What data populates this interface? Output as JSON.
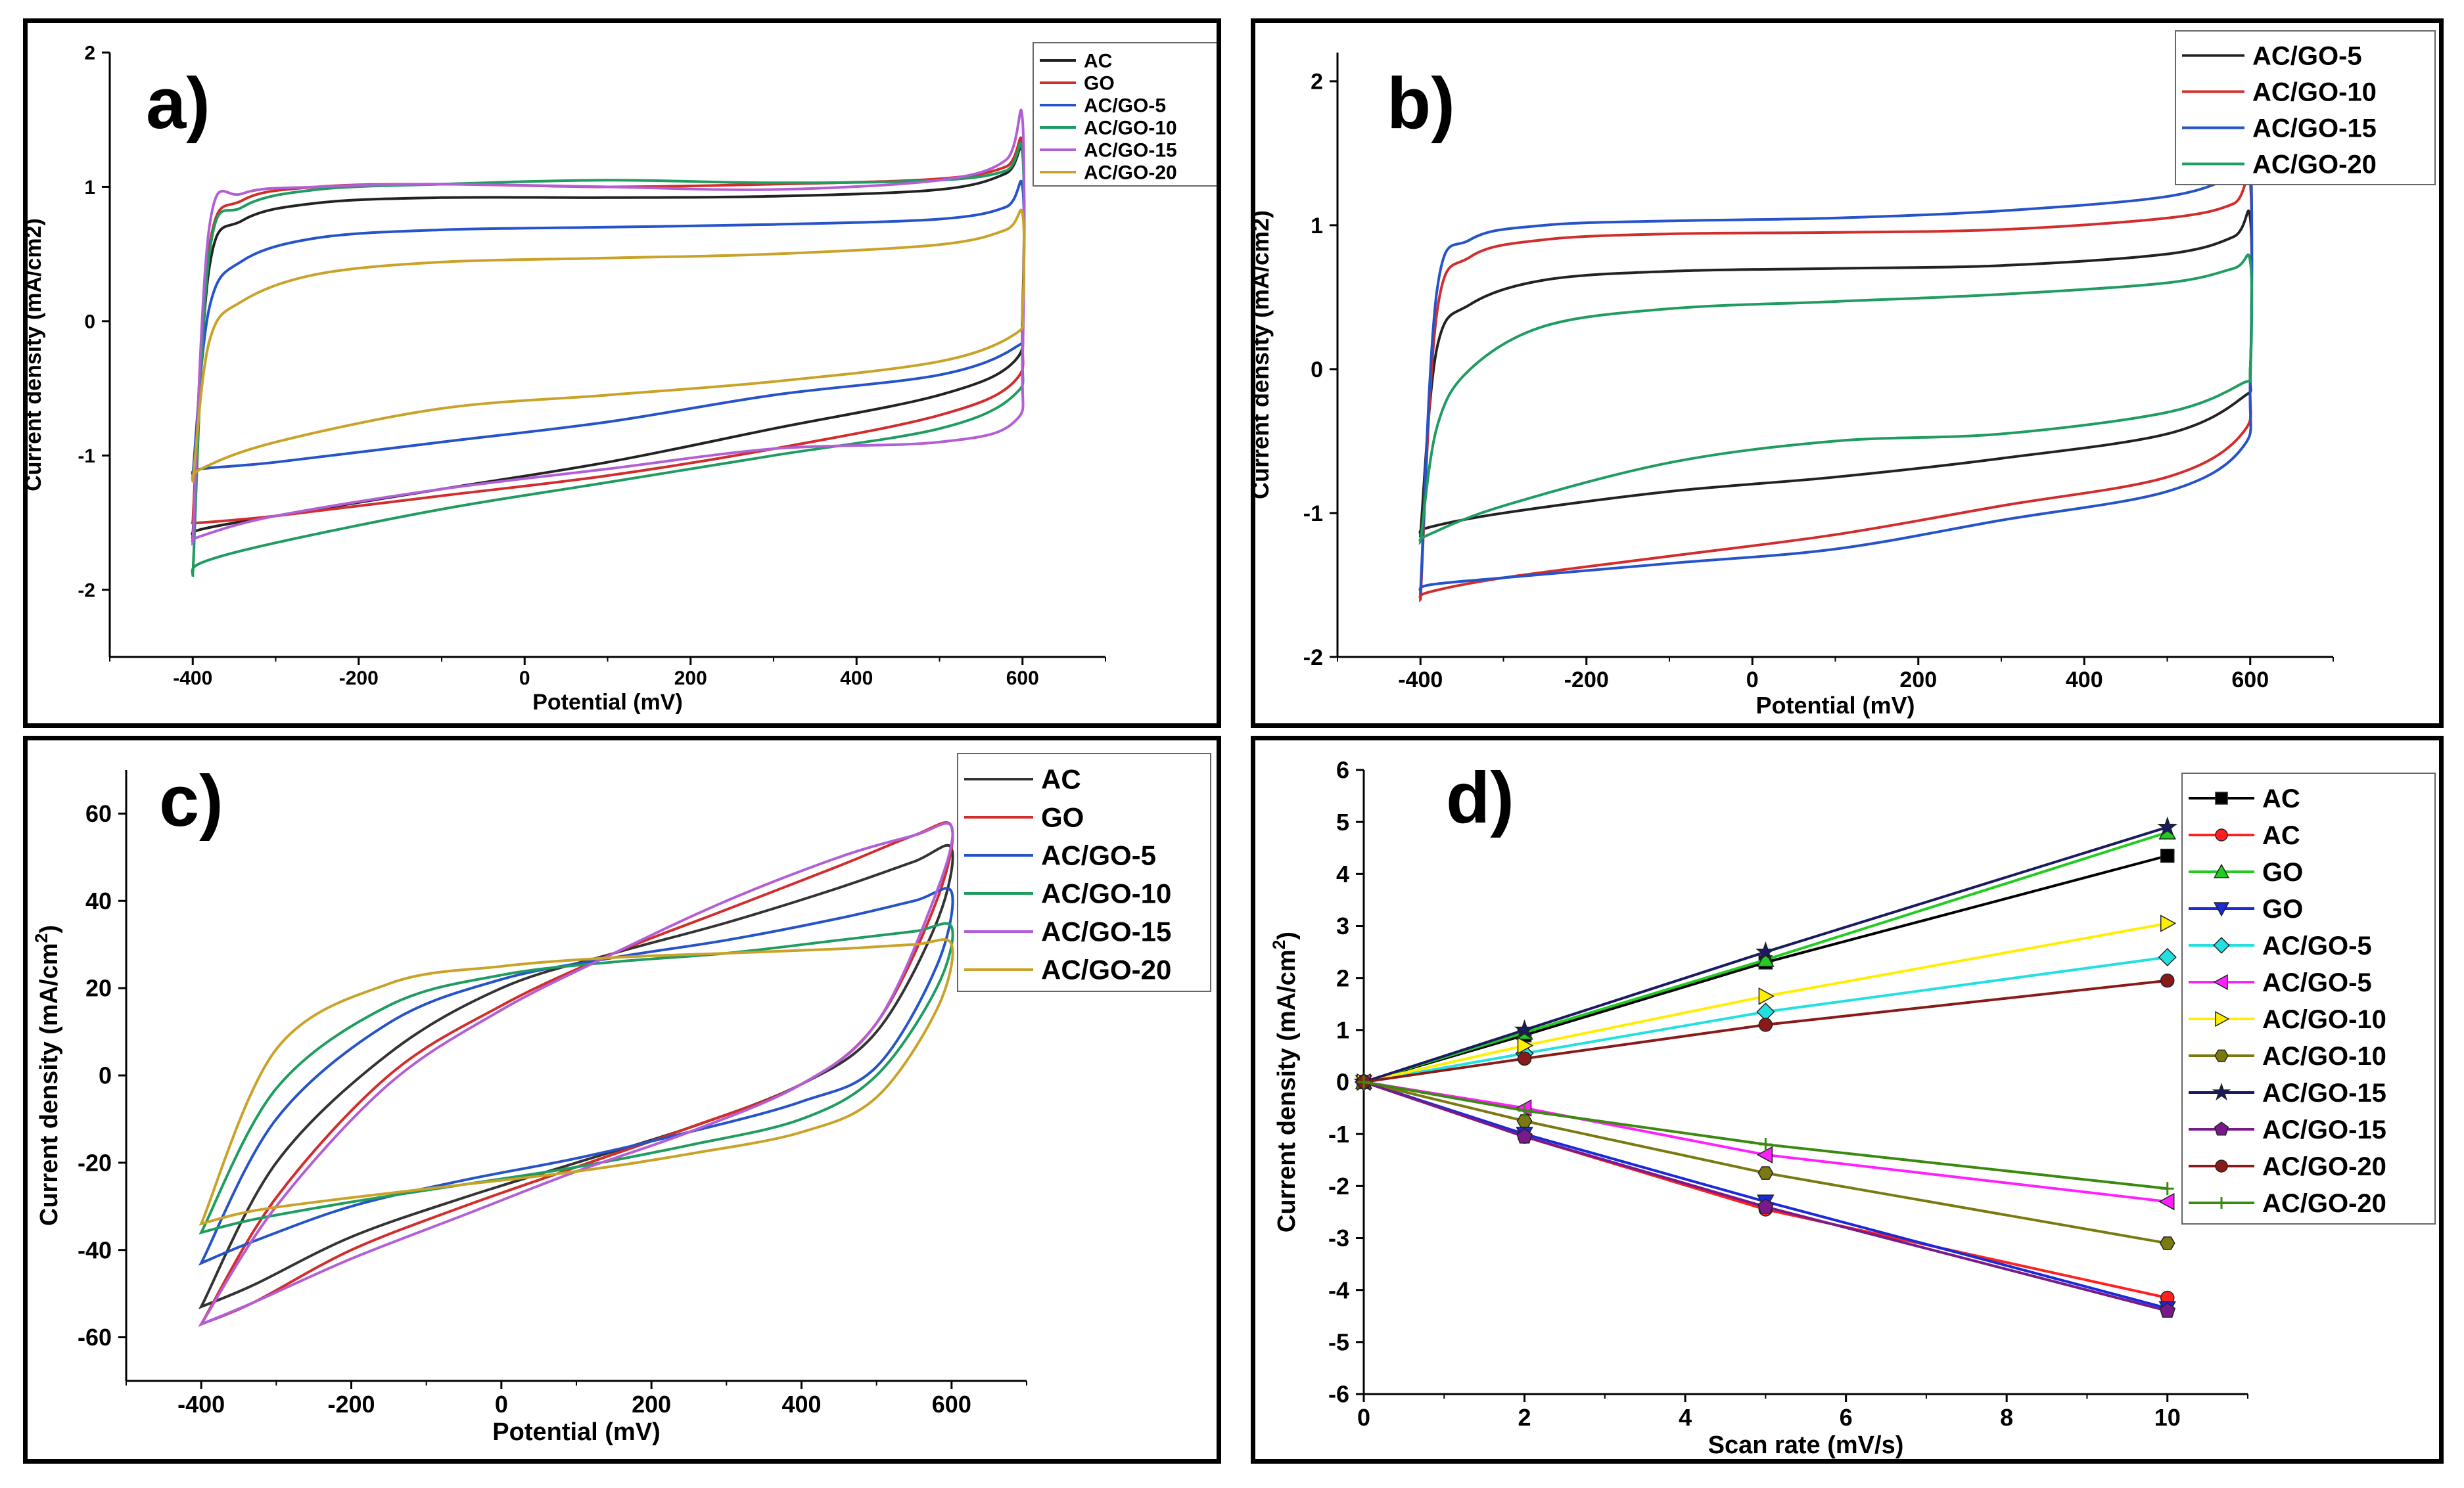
{
  "chart_data": [
    {
      "panel_label": "a)",
      "type": "line",
      "subtype": "cyclic voltammogram",
      "xlabel": "Potential (mV)",
      "ylabel": "Current density (mA/cm2)",
      "xlim": [
        -500,
        700
      ],
      "ylim": [
        -2.5,
        2
      ],
      "xticks": [
        "-400",
        "-200",
        "0",
        "200",
        "400",
        "600"
      ],
      "yticks": [
        "-2",
        "-1",
        "0",
        "1",
        "2"
      ],
      "legend_position": "top-right",
      "series": [
        {
          "name": "AC",
          "color": "#222222",
          "x": [
            -400,
            -380,
            -340,
            -250,
            -100,
            100,
            300,
            500,
            580,
            600,
            600,
            590,
            500,
            300,
            100,
            -100,
            -300,
            -390,
            -400
          ],
          "y": [
            -1.6,
            0.4,
            0.75,
            0.88,
            0.92,
            0.92,
            0.93,
            0.98,
            1.1,
            1.25,
            0.1,
            -0.3,
            -0.55,
            -0.8,
            -1.05,
            -1.25,
            -1.45,
            -1.55,
            -1.6
          ]
        },
        {
          "name": "GO",
          "color": "#d22d2d",
          "x": [
            -400,
            -380,
            -340,
            -250,
            -100,
            100,
            300,
            500,
            580,
            600,
            600,
            590,
            500,
            300,
            100,
            -100,
            -300,
            -390,
            -400
          ],
          "y": [
            -1.5,
            0.55,
            0.9,
            1.0,
            1.02,
            1.0,
            1.02,
            1.06,
            1.15,
            1.3,
            -0.05,
            -0.45,
            -0.7,
            -0.95,
            -1.15,
            -1.3,
            -1.45,
            -1.5,
            -1.5
          ]
        },
        {
          "name": "AC/GO-5",
          "color": "#2653c9",
          "x": [
            -400,
            -380,
            -340,
            -250,
            -100,
            100,
            300,
            500,
            580,
            600,
            600,
            590,
            500,
            300,
            100,
            -100,
            -300,
            -390,
            -400
          ],
          "y": [
            -1.15,
            0.1,
            0.45,
            0.62,
            0.68,
            0.7,
            0.72,
            0.76,
            0.85,
            1.0,
            0.0,
            -0.2,
            -0.4,
            -0.55,
            -0.75,
            -0.9,
            -1.05,
            -1.1,
            -1.15
          ]
        },
        {
          "name": "AC/GO-10",
          "color": "#1f9c5f",
          "x": [
            -400,
            -380,
            -340,
            -250,
            -100,
            100,
            300,
            500,
            580,
            600,
            600,
            590,
            500,
            300,
            100,
            -100,
            -300,
            -390,
            -400
          ],
          "y": [
            -1.9,
            0.5,
            0.85,
            0.98,
            1.02,
            1.05,
            1.03,
            1.05,
            1.12,
            1.25,
            -0.2,
            -0.55,
            -0.8,
            -1.0,
            -1.2,
            -1.4,
            -1.65,
            -1.8,
            -1.9
          ]
        },
        {
          "name": "AC/GO-15",
          "color": "#b25fd6",
          "x": [
            -400,
            -380,
            -340,
            -250,
            -100,
            100,
            300,
            500,
            580,
            600,
            600,
            590,
            500,
            300,
            100,
            -100,
            -300,
            -390,
            -400
          ],
          "y": [
            -1.65,
            0.7,
            0.95,
            1.0,
            1.02,
            1.0,
            0.98,
            1.05,
            1.2,
            1.5,
            -0.3,
            -0.75,
            -0.9,
            -0.95,
            -1.1,
            -1.25,
            -1.45,
            -1.6,
            -1.65
          ]
        },
        {
          "name": "AC/GO-20",
          "color": "#c9a227",
          "x": [
            -400,
            -380,
            -340,
            -250,
            -100,
            100,
            300,
            500,
            580,
            600,
            600,
            590,
            500,
            300,
            100,
            -100,
            -300,
            -390,
            -400
          ],
          "y": [
            -1.2,
            -0.15,
            0.15,
            0.35,
            0.44,
            0.47,
            0.5,
            0.57,
            0.68,
            0.8,
            0.1,
            -0.1,
            -0.3,
            -0.45,
            -0.55,
            -0.65,
            -0.9,
            -1.1,
            -1.2
          ]
        }
      ]
    },
    {
      "panel_label": "b)",
      "type": "line",
      "subtype": "cyclic voltammogram",
      "xlabel": "Potential (mV)",
      "ylabel": "Current density (mA/cm2)",
      "xlim": [
        -500,
        700
      ],
      "ylim": [
        -2,
        2.2
      ],
      "xticks": [
        "-400",
        "-200",
        "0",
        "200",
        "400",
        "600"
      ],
      "yticks": [
        "-2",
        "-1",
        "0",
        "1",
        "2"
      ],
      "legend_position": "top-right",
      "series": [
        {
          "name": "AC/GO-5",
          "color": "#222222",
          "x": [
            -400,
            -380,
            -340,
            -250,
            -100,
            100,
            300,
            500,
            580,
            600,
            600,
            590,
            500,
            300,
            100,
            -100,
            -300,
            -390,
            -400
          ],
          "y": [
            -1.15,
            0.15,
            0.45,
            0.62,
            0.68,
            0.7,
            0.72,
            0.8,
            0.92,
            1.05,
            0.0,
            -0.2,
            -0.45,
            -0.62,
            -0.75,
            -0.85,
            -1.0,
            -1.1,
            -1.15
          ]
        },
        {
          "name": "AC/GO-10",
          "color": "#d22d2d",
          "x": [
            -400,
            -380,
            -340,
            -250,
            -100,
            100,
            300,
            500,
            580,
            600,
            600,
            590,
            500,
            300,
            100,
            -100,
            -300,
            -390,
            -400
          ],
          "y": [
            -1.6,
            0.4,
            0.78,
            0.9,
            0.94,
            0.95,
            0.97,
            1.05,
            1.15,
            1.3,
            -0.05,
            -0.45,
            -0.75,
            -0.95,
            -1.15,
            -1.3,
            -1.45,
            -1.55,
            -1.6
          ]
        },
        {
          "name": "AC/GO-15",
          "color": "#2653c9",
          "x": [
            -400,
            -380,
            -340,
            -250,
            -100,
            100,
            300,
            500,
            580,
            600,
            600,
            590,
            500,
            300,
            100,
            -100,
            -300,
            -390,
            -400
          ],
          "y": [
            -1.55,
            0.55,
            0.9,
            1.0,
            1.03,
            1.05,
            1.1,
            1.2,
            1.35,
            1.5,
            -0.1,
            -0.55,
            -0.85,
            -1.05,
            -1.25,
            -1.35,
            -1.45,
            -1.5,
            -1.55
          ]
        },
        {
          "name": "AC/GO-20",
          "color": "#1f9c5f",
          "x": [
            -400,
            -380,
            -340,
            -250,
            -100,
            100,
            300,
            500,
            580,
            600,
            600,
            590,
            500,
            300,
            100,
            -100,
            -300,
            -390,
            -400
          ],
          "y": [
            -1.2,
            -0.4,
            0.0,
            0.3,
            0.42,
            0.47,
            0.52,
            0.6,
            0.7,
            0.75,
            0.0,
            -0.1,
            -0.3,
            -0.45,
            -0.5,
            -0.65,
            -0.95,
            -1.15,
            -1.2
          ]
        }
      ]
    },
    {
      "panel_label": "c)",
      "type": "line",
      "subtype": "cyclic voltammogram",
      "xlabel": "Potential (mV)",
      "ylabel": "Current density (mA/cm",
      "ylabel_sup": "2",
      "ylabel_end": ")",
      "xlim": [
        -500,
        700
      ],
      "ylim": [
        -70,
        70
      ],
      "xticks": [
        "-400",
        "-200",
        "0",
        "200",
        "400",
        "600"
      ],
      "yticks": [
        "-60",
        "-40",
        "-20",
        "0",
        "20",
        "40",
        "60"
      ],
      "legend_position": "top-right",
      "series": [
        {
          "name": "AC",
          "color": "#333333",
          "x": [
            -400,
            -300,
            -150,
            0,
            150,
            300,
            450,
            550,
            600,
            580,
            500,
            400,
            250,
            100,
            -50,
            -200,
            -330,
            -400
          ],
          "y": [
            -53,
            -20,
            5,
            20,
            28,
            35,
            43,
            49,
            52,
            35,
            10,
            -2,
            -12,
            -20,
            -28,
            -37,
            -48,
            -53
          ]
        },
        {
          "name": "GO",
          "color": "#d22d2d",
          "x": [
            -400,
            -300,
            -150,
            0,
            150,
            300,
            450,
            550,
            600,
            580,
            500,
            400,
            250,
            100,
            -50,
            -200,
            -330,
            -400
          ],
          "y": [
            -57,
            -28,
            0,
            16,
            28,
            38,
            48,
            55,
            57,
            40,
            12,
            -2,
            -12,
            -21,
            -30,
            -40,
            -52,
            -57
          ]
        },
        {
          "name": "AC/GO-5",
          "color": "#2653c9",
          "x": [
            -400,
            -300,
            -150,
            0,
            150,
            300,
            450,
            550,
            600,
            580,
            500,
            400,
            250,
            100,
            -50,
            -200,
            -330,
            -400
          ],
          "y": [
            -43,
            -10,
            12,
            22,
            27,
            31,
            36,
            40,
            42,
            25,
            2,
            -6,
            -13,
            -19,
            -24,
            -30,
            -38,
            -43
          ]
        },
        {
          "name": "AC/GO-10",
          "color": "#1f9c5f",
          "x": [
            -400,
            -300,
            -150,
            0,
            150,
            300,
            450,
            550,
            600,
            580,
            500,
            400,
            250,
            100,
            -50,
            -200,
            -330,
            -400
          ],
          "y": [
            -36,
            -3,
            16,
            23,
            26,
            28,
            31,
            33,
            34,
            20,
            0,
            -10,
            -16,
            -21,
            -25,
            -29,
            -33,
            -36
          ]
        },
        {
          "name": "AC/GO-15",
          "color": "#b25fd6",
          "x": [
            -400,
            -300,
            -150,
            0,
            150,
            300,
            450,
            550,
            600,
            580,
            500,
            400,
            250,
            100,
            -50,
            -200,
            -330,
            -400
          ],
          "y": [
            -57,
            -30,
            -2,
            15,
            28,
            40,
            50,
            55,
            57,
            42,
            12,
            -2,
            -13,
            -22,
            -32,
            -42,
            -52,
            -57
          ]
        },
        {
          "name": "AC/GO-20",
          "color": "#c9a227",
          "x": [
            -400,
            -300,
            -150,
            0,
            150,
            300,
            450,
            550,
            600,
            580,
            500,
            400,
            250,
            100,
            -50,
            -200,
            -330,
            -400
          ],
          "y": [
            -34,
            6,
            21,
            25,
            27,
            28,
            29,
            30,
            30,
            15,
            -5,
            -13,
            -18,
            -22,
            -25,
            -28,
            -31,
            -34
          ]
        }
      ]
    },
    {
      "panel_label": "d)",
      "type": "line",
      "subtype": "line with markers",
      "xlabel": "Scan rate (mV/s)",
      "ylabel": "Current density (mA/cm",
      "ylabel_sup": "2",
      "ylabel_end": ")",
      "xlim": [
        0,
        11
      ],
      "ylim": [
        -6,
        6
      ],
      "xticks": [
        "0",
        "2",
        "4",
        "6",
        "8",
        "10"
      ],
      "yticks": [
        "-6",
        "-5",
        "-4",
        "-3",
        "-2",
        "-1",
        "0",
        "1",
        "2",
        "3",
        "4",
        "5",
        "6"
      ],
      "x": [
        0,
        2,
        5,
        10
      ],
      "legend_position": "right",
      "series": [
        {
          "name": "AC",
          "color": "#000000",
          "marker": "square",
          "values": [
            0,
            0.9,
            2.3,
            4.35
          ]
        },
        {
          "name": "AC",
          "color": "#ff2020",
          "marker": "circle",
          "values": [
            0,
            -1.05,
            -2.45,
            -4.15
          ]
        },
        {
          "name": "GO",
          "color": "#20cc20",
          "marker": "triangle-up",
          "values": [
            0,
            0.95,
            2.35,
            4.8
          ]
        },
        {
          "name": "GO",
          "color": "#1a2ad6",
          "marker": "triangle-down",
          "values": [
            0,
            -1.0,
            -2.3,
            -4.35
          ]
        },
        {
          "name": "AC/GO-5",
          "color": "#22e0e0",
          "marker": "diamond",
          "values": [
            0,
            0.55,
            1.35,
            2.4
          ]
        },
        {
          "name": "AC/GO-5",
          "color": "#ff20ff",
          "marker": "triangle-left",
          "values": [
            0,
            -0.5,
            -1.4,
            -2.3
          ]
        },
        {
          "name": "AC/GO-10",
          "color": "#ffee00",
          "marker": "triangle-right",
          "values": [
            0,
            0.7,
            1.65,
            3.05
          ]
        },
        {
          "name": "AC/GO-10",
          "color": "#7a7a10",
          "marker": "hexagon",
          "values": [
            0,
            -0.75,
            -1.75,
            -3.1
          ]
        },
        {
          "name": "AC/GO-15",
          "color": "#1a1a60",
          "marker": "star",
          "values": [
            0,
            1.0,
            2.5,
            4.9
          ]
        },
        {
          "name": "AC/GO-15",
          "color": "#7a1a8a",
          "marker": "pentagon",
          "values": [
            0,
            -1.05,
            -2.4,
            -4.4
          ]
        },
        {
          "name": "AC/GO-20",
          "color": "#8a1a1a",
          "marker": "circle-half",
          "values": [
            0,
            0.45,
            1.1,
            1.95
          ]
        },
        {
          "name": "AC/GO-20",
          "color": "#3a8a10",
          "marker": "plus",
          "values": [
            0,
            -0.55,
            -1.2,
            -2.05
          ]
        }
      ]
    }
  ]
}
